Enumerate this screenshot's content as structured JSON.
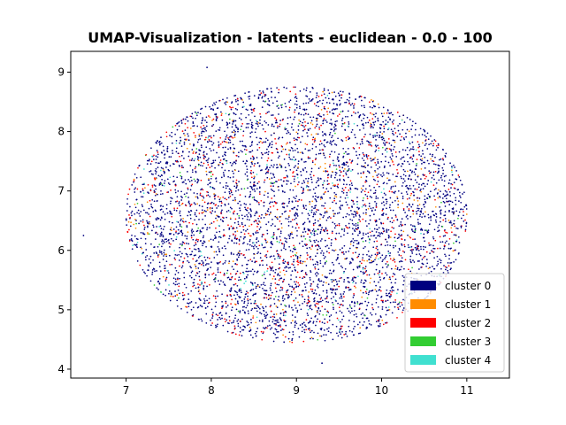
{
  "chart_data": {
    "type": "scatter",
    "title": "UMAP-Visualization - latents - euclidean - 0.0 - 100",
    "xlabel": "",
    "ylabel": "",
    "xlim": [
      6.35,
      11.5
    ],
    "ylim": [
      3.85,
      9.35
    ],
    "xticks": [
      7,
      8,
      9,
      10,
      11
    ],
    "yticks": [
      4,
      5,
      6,
      7,
      8,
      9
    ],
    "grid": false,
    "legend_position": "lower-right",
    "distribution": {
      "shape": "ellipse",
      "center": [
        9.0,
        6.6
      ],
      "radius": [
        2.0,
        2.15
      ]
    },
    "series": [
      {
        "name": "cluster 0",
        "color": "#000080",
        "share": 0.78
      },
      {
        "name": "cluster 1",
        "color": "#ff8c00",
        "share": 0.05
      },
      {
        "name": "cluster 2",
        "color": "#ff0000",
        "share": 0.13
      },
      {
        "name": "cluster 3",
        "color": "#32cd32",
        "share": 0.02
      },
      {
        "name": "cluster 4",
        "color": "#40e0d0",
        "share": 0.02
      }
    ],
    "outliers": [
      {
        "x": 7.95,
        "y": 9.08,
        "cluster": "cluster 0"
      },
      {
        "x": 9.3,
        "y": 4.1,
        "cluster": "cluster 0"
      },
      {
        "x": 6.5,
        "y": 6.25,
        "cluster": "cluster 0"
      },
      {
        "x": 10.95,
        "y": 6.95,
        "cluster": "cluster 0"
      }
    ]
  }
}
